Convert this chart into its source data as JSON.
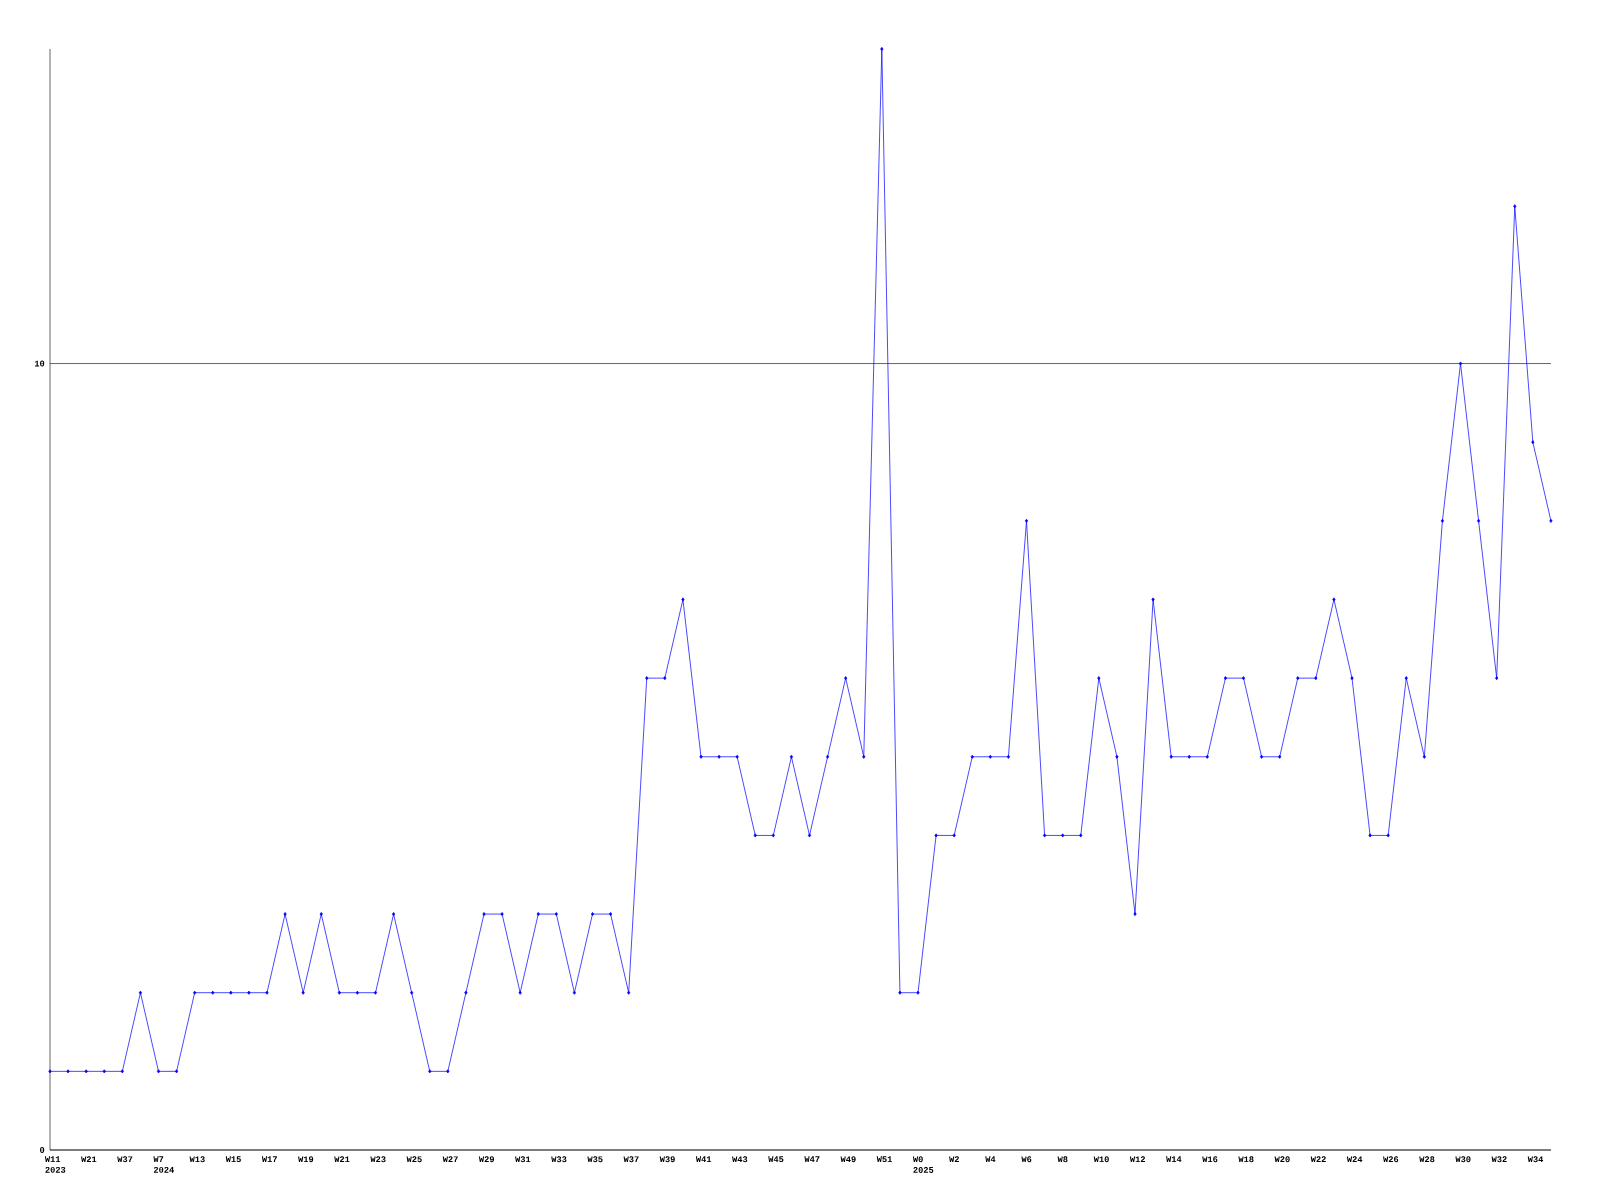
{
  "chart_data": {
    "type": "line",
    "categories": [
      "W11 2023",
      null,
      "W21",
      null,
      "W37",
      null,
      "W7 2024",
      null,
      "W13",
      null,
      "W15",
      null,
      "W17",
      null,
      "W19",
      null,
      "W21",
      null,
      "W23",
      null,
      "W25",
      null,
      "W27",
      null,
      "W29",
      null,
      "W31",
      null,
      "W33",
      null,
      "W35",
      null,
      "W37",
      null,
      "W39",
      null,
      "W41",
      null,
      "W43",
      null,
      "W45",
      null,
      "W47",
      null,
      "W49",
      null,
      "W51",
      null,
      "W0 2025",
      null,
      "W2",
      null,
      "W4",
      null,
      "W6",
      null,
      "W8",
      null,
      "W10",
      null,
      "W12",
      null,
      "W14",
      null,
      "W16",
      null,
      "W18",
      null,
      "W20",
      null,
      "W22",
      null,
      "W24",
      null,
      "W26",
      null,
      "W28",
      null,
      "W30",
      null,
      "W32",
      null,
      "W34",
      null
    ],
    "values": [
      1,
      1,
      1,
      1,
      1,
      2,
      1,
      1,
      2,
      2,
      2,
      2,
      2,
      3,
      2,
      3,
      2,
      2,
      2,
      3,
      2,
      1,
      1,
      2,
      3,
      3,
      2,
      3,
      3,
      2,
      3,
      3,
      2,
      6,
      6,
      7,
      5,
      5,
      5,
      4,
      4,
      5,
      4,
      5,
      6,
      5,
      14,
      2,
      2,
      4,
      4,
      5,
      5,
      5,
      8,
      4,
      4,
      4,
      6,
      5,
      3,
      7,
      5,
      5,
      5,
      6,
      6,
      5,
      5,
      6,
      6,
      7,
      6,
      4,
      4,
      6,
      5,
      8,
      10,
      8,
      6,
      12,
      9,
      8
    ],
    "color": "#0000ff",
    "ylim": [
      0,
      14
    ],
    "yticks": [
      0,
      10
    ],
    "grid": "y",
    "marker": "diamond",
    "line_style": "solid"
  }
}
